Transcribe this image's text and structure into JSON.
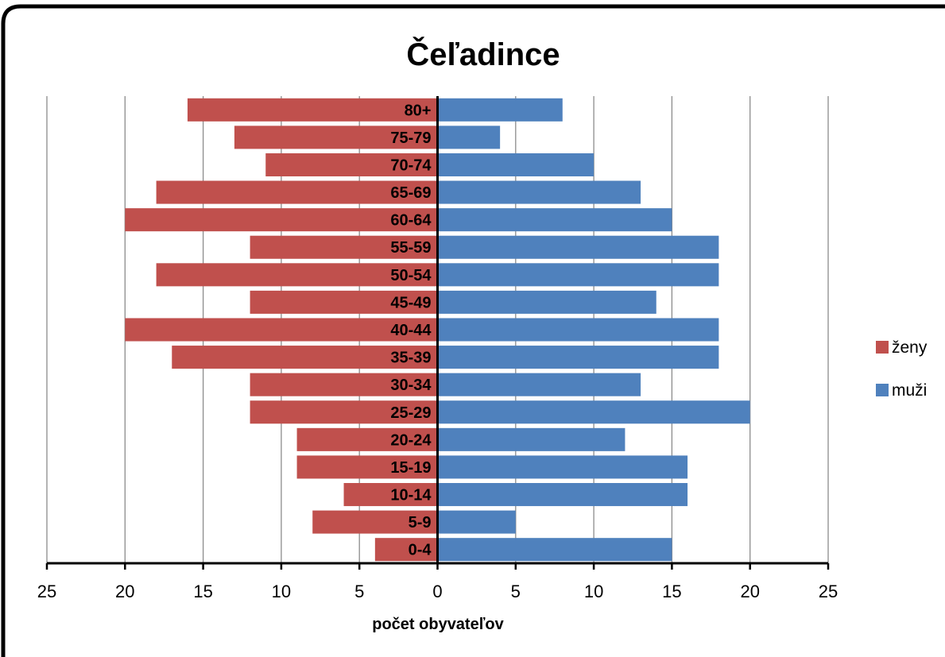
{
  "chart_data": {
    "type": "bar",
    "orientation": "horizontal",
    "title": "Čeľadince",
    "xlabel": "počet obyvateľov",
    "ylabel": "",
    "xlim": [
      -25,
      25
    ],
    "x_ticks": [
      -25,
      -20,
      -15,
      -10,
      -5,
      0,
      5,
      10,
      15,
      20,
      25
    ],
    "x_tick_labels": [
      "25",
      "20",
      "15",
      "10",
      "5",
      "0",
      "5",
      "10",
      "15",
      "20",
      "25"
    ],
    "grid": "vertical",
    "legend_position": "right",
    "categories": [
      "0-4",
      "5-9",
      "10-14",
      "15-19",
      "20-24",
      "25-29",
      "30-34",
      "35-39",
      "40-44",
      "45-49",
      "50-54",
      "55-59",
      "60-64",
      "65-69",
      "70-74",
      "75-79",
      "80+"
    ],
    "series": [
      {
        "name": "ženy",
        "color": "#c0504d",
        "values": [
          4,
          8,
          6,
          9,
          9,
          12,
          12,
          17,
          20,
          12,
          18,
          12,
          20,
          18,
          11,
          13,
          16
        ]
      },
      {
        "name": "muži",
        "color": "#4f81bd",
        "values": [
          15,
          5,
          16,
          16,
          12,
          20,
          13,
          18,
          18,
          14,
          18,
          18,
          15,
          13,
          10,
          4,
          8
        ]
      }
    ]
  }
}
